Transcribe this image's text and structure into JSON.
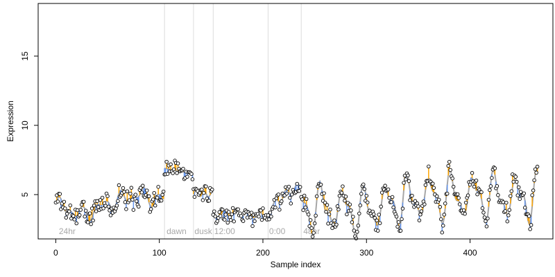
{
  "chart_data": {
    "type": "scatter",
    "xlabel": "Sample index",
    "ylabel": "Expression",
    "xlim": [
      -17,
      480
    ],
    "ylim": [
      1.8,
      18.8
    ],
    "x_ticks": [
      0,
      100,
      200,
      300,
      400
    ],
    "y_ticks": [
      5,
      10,
      15
    ],
    "region_boundaries": [
      105,
      133,
      152,
      205,
      237
    ],
    "region_labels": [
      {
        "label": "24hr",
        "x": 3
      },
      {
        "label": "dawn",
        "x": 107
      },
      {
        "label": "dusk",
        "x": 134
      },
      {
        "label": "12:00",
        "x": 153
      },
      {
        "label": "0:00",
        "x": 206
      },
      {
        "label": "48hr",
        "x": 239
      }
    ],
    "colors": {
      "fitted_line": "#a6a6a6",
      "residual_above": "#ffa500",
      "residual_below": "#6495ed",
      "point_fill": "#ffffff",
      "point_stroke": "#000000",
      "region_line": "#dcdcdc",
      "region_label": "#a8a8a8"
    },
    "segments": [
      {
        "x_start": 0,
        "x_end": 104,
        "trend": [
          4.3,
          3.5,
          4.4,
          5.0,
          4.6
        ],
        "waves": [
          [
            0.4,
            0.32
          ],
          [
            0.3,
            0.53
          ]
        ],
        "noise": 0.6,
        "seed": 11
      },
      {
        "x_start": 105,
        "x_end": 132,
        "trend": [
          6.9,
          6.5
        ],
        "waves": [],
        "noise": 0.45,
        "seed": 23
      },
      {
        "x_start": 133,
        "x_end": 151,
        "trend": [
          5.1,
          5.0
        ],
        "waves": [
          [
            0.2,
            0.8
          ]
        ],
        "noise": 0.35,
        "seed": 31
      },
      {
        "x_start": 152,
        "x_end": 204,
        "trend": [
          3.5,
          3.7,
          3.4
        ],
        "waves": [
          [
            0.25,
            0.55
          ]
        ],
        "noise": 0.45,
        "seed": 47
      },
      {
        "x_start": 205,
        "x_end": 236,
        "trend": [
          3.8,
          5.0,
          5.6
        ],
        "waves": [
          [
            0.3,
            0.6
          ]
        ],
        "noise": 0.5,
        "seed": 59
      },
      {
        "x_start": 237,
        "x_end": 465,
        "trend": [
          4.1,
          3.8,
          4.8,
          4.9,
          4.8
        ],
        "waves": [
          [
            0.3,
            0.45
          ],
          [
            1.3,
            0.3
          ],
          [
            0.6,
            0.6
          ]
        ],
        "noise": 0.5,
        "seed": 83
      }
    ]
  }
}
